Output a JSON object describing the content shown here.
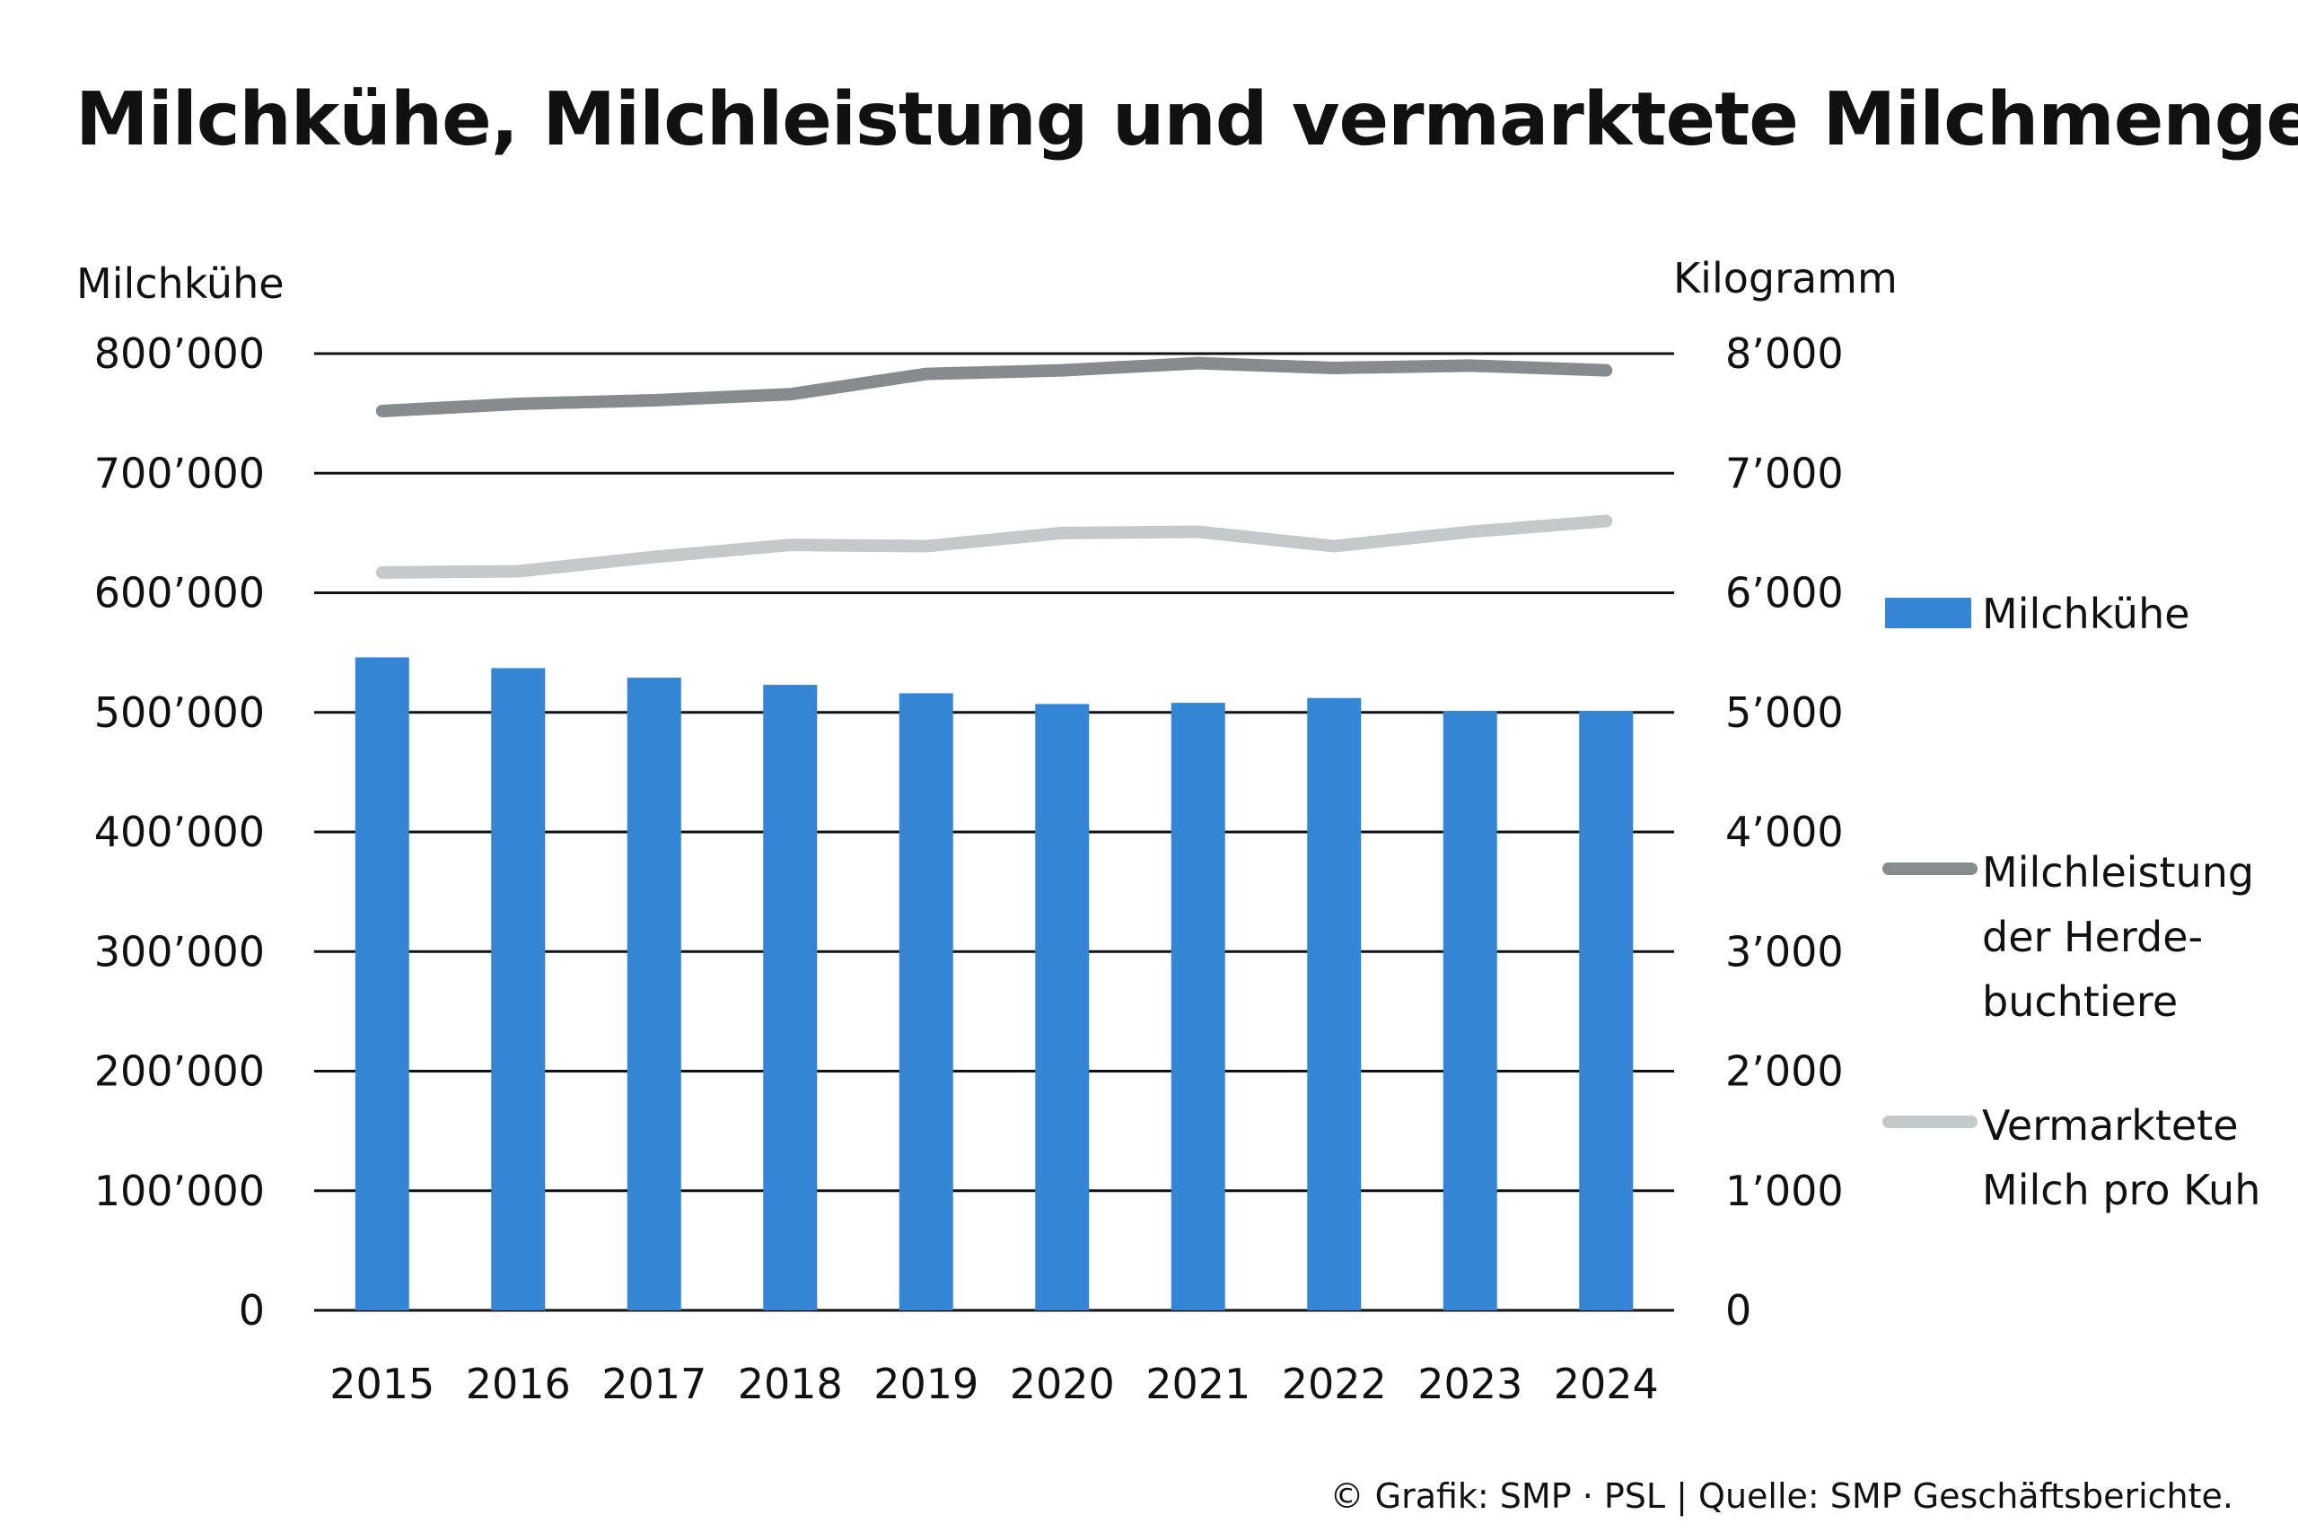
{
  "title": "Milchkühe, Milchleistung und vermarktete Milchmenge",
  "footer": "© Grafik: SMP · PSL | Quelle: SMP Geschäftsberichte.",
  "legend": {
    "bars": "Milchkühe",
    "line1": [
      "Milchleistung",
      "der Herde-",
      "buchtiere"
    ],
    "line2": [
      "Vermarktete",
      "Milch pro Kuh"
    ]
  },
  "chart_data": {
    "type": "bar+line",
    "categories": [
      "2015",
      "2016",
      "2017",
      "2018",
      "2019",
      "2020",
      "2021",
      "2022",
      "2023",
      "2024"
    ],
    "left_axis": {
      "label": "Milchkühe",
      "ylim": [
        0,
        800000
      ],
      "ticks": [
        "0",
        "100’000",
        "200’000",
        "300’000",
        "400’000",
        "500’000",
        "600’000",
        "700’000",
        "800’000"
      ]
    },
    "right_axis": {
      "label": "Kilogramm",
      "ylim": [
        0,
        8000
      ],
      "ticks": [
        "0",
        "1’000",
        "2’000",
        "3’000",
        "4’000",
        "5’000",
        "6’000",
        "7’000",
        "8’000"
      ]
    },
    "series": [
      {
        "name": "Milchkühe",
        "type": "bar",
        "axis": "left",
        "values": [
          546000,
          537000,
          529000,
          523000,
          516000,
          507000,
          508000,
          512000,
          501000,
          501000
        ]
      },
      {
        "name": "Milchleistung der Herdebuchtiere",
        "type": "line",
        "axis": "right",
        "values": [
          7520,
          7580,
          7610,
          7660,
          7830,
          7860,
          7920,
          7880,
          7900,
          7860
        ]
      },
      {
        "name": "Vermarktete Milch pro Kuh",
        "type": "line",
        "axis": "right",
        "values": [
          6170,
          6180,
          6300,
          6400,
          6390,
          6500,
          6510,
          6390,
          6510,
          6600
        ]
      }
    ],
    "colors": {
      "bars": "#3585d6",
      "line1": "#868b90",
      "line2": "#c4c9cc",
      "grid": "#111111"
    },
    "grid": true,
    "legend_position": "right"
  }
}
